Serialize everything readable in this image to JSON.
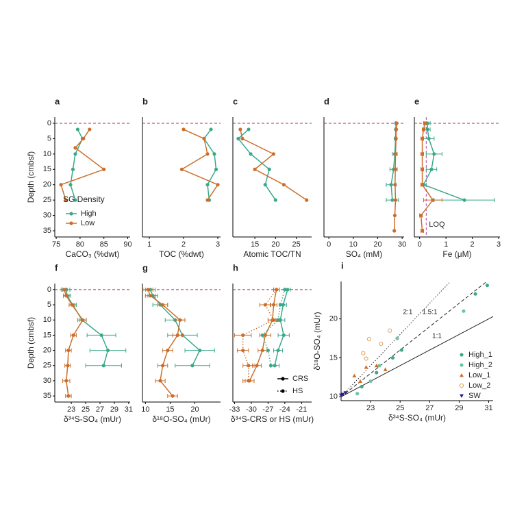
{
  "chart_data": [
    {
      "type": "line",
      "label": "a",
      "xlabel": "CaCO₃ (%dwt)",
      "ylabel": "Depth (cmbsf)",
      "xlim": [
        74.7,
        90.5
      ],
      "xticks": [
        75,
        80,
        85,
        90
      ],
      "ylim": [
        37,
        -2
      ],
      "yticks": [
        0,
        5,
        10,
        15,
        20,
        25,
        30,
        35
      ],
      "hline": {
        "value": 0,
        "color": "#a8326e"
      },
      "legend": {
        "title": "SG Density",
        "position": "bottom-left"
      },
      "series": [
        {
          "name": "High",
          "color": "#3aa98b",
          "x": [
            79.5,
            80.5,
            79,
            78.5,
            78,
            79
          ],
          "y": [
            2,
            5,
            10,
            15,
            20,
            25
          ]
        },
        {
          "name": "Low",
          "color": "#cc6e2a",
          "x": [
            82,
            80.7,
            79,
            85,
            76,
            77
          ],
          "y": [
            2,
            5,
            8,
            15,
            20,
            25
          ]
        }
      ]
    },
    {
      "type": "line",
      "label": "b",
      "xlabel": "TOC (%dwt)",
      "xlim": [
        0.8,
        3.08
      ],
      "xticks": [
        1,
        2,
        3
      ],
      "ylim": [
        37,
        -2
      ],
      "hline": {
        "value": 0,
        "color": "#a8326e"
      },
      "series": [
        {
          "color": "#3aa98b",
          "x": [
            2.8,
            2.6,
            2.9,
            2.95,
            2.7,
            2.75
          ],
          "y": [
            2,
            5,
            10,
            15,
            20,
            25
          ]
        },
        {
          "color": "#cc6e2a",
          "x": [
            2.0,
            2.6,
            2.7,
            1.95,
            3.0,
            2.7
          ],
          "y": [
            2,
            5,
            10,
            15,
            20,
            25
          ]
        }
      ]
    },
    {
      "type": "line",
      "label": "c",
      "xlabel": "Atomic TOC/TN",
      "xlim": [
        9.7,
        28.7
      ],
      "xticks": [
        15,
        20,
        25
      ],
      "ylim": [
        37,
        -2
      ],
      "hline": {
        "value": 0,
        "color": "#a8326e"
      },
      "series": [
        {
          "color": "#3aa98b",
          "x": [
            13.5,
            11,
            14,
            18.5,
            17.5,
            20
          ],
          "y": [
            2,
            5,
            10,
            15,
            20,
            25
          ]
        },
        {
          "color": "#cc6e2a",
          "x": [
            11.5,
            12,
            19.5,
            15,
            22,
            27.5
          ],
          "y": [
            2,
            5,
            10,
            15,
            20,
            25
          ]
        }
      ]
    },
    {
      "type": "line",
      "label": "d",
      "xlabel": "SO₄ (mM)",
      "xlim": [
        -2,
        30.8
      ],
      "xticks": [
        0,
        10,
        20,
        30
      ],
      "ylim": [
        37,
        -2
      ],
      "hline": {
        "value": 0,
        "color": "#a8326e"
      },
      "series": [
        {
          "color": "#3aa98b",
          "x": [
            27.5,
            27.4,
            27.3,
            27,
            26.5,
            25.5,
            26
          ],
          "y": [
            0,
            2,
            5,
            10,
            15,
            20,
            25
          ],
          "errors": [
            0.3,
            0.3,
            0.5,
            1,
            1.5,
            2,
            2.5
          ]
        },
        {
          "color": "#cc6e2a",
          "x": [
            27.8,
            27.6,
            27.5,
            27.3,
            27.2,
            27.1,
            27.3,
            27,
            26.8
          ],
          "y": [
            0,
            2,
            5,
            10,
            15,
            20,
            25,
            30,
            35
          ]
        }
      ]
    },
    {
      "type": "line",
      "label": "e",
      "xlabel": "Fe (μM)",
      "xlim": [
        -0.2,
        3.05
      ],
      "xticks": [
        0,
        1,
        2,
        3
      ],
      "ylim": [
        37,
        -2
      ],
      "hline": {
        "value": 0,
        "color": "#a8326e"
      },
      "vline": {
        "value": 0.25,
        "label": "LOQ",
        "color": "#b83fb0"
      },
      "series": [
        {
          "color": "#3aa98b",
          "x": [
            0.3,
            0.3,
            0.35,
            0.55,
            0.45,
            0.15,
            1.7
          ],
          "y": [
            0,
            2,
            5,
            10,
            15,
            20,
            25
          ],
          "errors": [
            0.1,
            0.1,
            0.2,
            0.3,
            0.2,
            0.1,
            1.15
          ]
        },
        {
          "color": "#cc6e2a",
          "x": [
            0.2,
            0.15,
            0.1,
            0.1,
            0.1,
            0.1,
            0.5,
            0.05,
            0.1
          ],
          "y": [
            0,
            2,
            5,
            10,
            15,
            20,
            25,
            30,
            35
          ],
          "errors": [
            0.05,
            0.05,
            0.05,
            0.05,
            0.05,
            0.05,
            0.35,
            0.05,
            0.05
          ]
        }
      ]
    },
    {
      "type": "line",
      "label": "f",
      "xlabel": "δ³⁴S-SO₄ (mUr)",
      "ylabel": "Depth (cmbsf)",
      "xlim": [
        20.7,
        31.2
      ],
      "xticks": [
        23,
        25,
        27,
        29,
        31
      ],
      "ylim": [
        37,
        -2
      ],
      "yticks": [
        0,
        5,
        10,
        15,
        20,
        25,
        30,
        35
      ],
      "hline": {
        "value": 0,
        "color": "#a8326e"
      },
      "series": [
        {
          "color": "#3aa98b",
          "x": [
            22.3,
            22.4,
            23.2,
            24.5,
            27.2,
            28.1,
            27.5
          ],
          "y": [
            0,
            2,
            5,
            10,
            15,
            20,
            25
          ],
          "errors": [
            0.5,
            0.5,
            0.5,
            0.6,
            2,
            2.5,
            2.5
          ]
        },
        {
          "color": "#cc6e2a",
          "x": [
            22,
            22.3,
            23.1,
            24.6,
            23.3,
            22.6,
            22.5,
            22.3,
            22.6
          ],
          "y": [
            0,
            2,
            5,
            10,
            15,
            20,
            25,
            30,
            35
          ],
          "errors": [
            0.4,
            0.4,
            0.4,
            0.5,
            0.4,
            0.4,
            0.4,
            0.5,
            0.4
          ]
        }
      ]
    },
    {
      "type": "line",
      "label": "g",
      "xlabel": "δ¹⁸O-SO₄ (mUr)",
      "xlim": [
        9.4,
        25.2
      ],
      "xticks": [
        10,
        15,
        20
      ],
      "ylim": [
        37,
        -2
      ],
      "hline": {
        "value": 0,
        "color": "#a8326e"
      },
      "series": [
        {
          "color": "#3aa98b",
          "x": [
            11,
            11.5,
            13,
            16,
            17.5,
            21,
            19.5
          ],
          "y": [
            0,
            2,
            5,
            10,
            15,
            20,
            25
          ],
          "errors": [
            1,
            1,
            1.5,
            2,
            3,
            3,
            3.5
          ]
        },
        {
          "color": "#cc6e2a",
          "x": [
            10.5,
            11,
            13.5,
            17,
            16.5,
            14.5,
            13.5,
            13,
            15.5
          ],
          "y": [
            0,
            2,
            5,
            10,
            15,
            20,
            25,
            30,
            35
          ],
          "errors": [
            1,
            1,
            1,
            1,
            1,
            1,
            1,
            1,
            1
          ]
        }
      ]
    },
    {
      "type": "line",
      "label": "h",
      "xlabel": "δ³⁴S-CRS or HS (mUr)",
      "xlim": [
        -33.3,
        -19.2
      ],
      "xticks": [
        -33,
        -30,
        -27,
        -24,
        -21
      ],
      "ylim": [
        37,
        -2
      ],
      "hline": {
        "value": 0,
        "color": "#a8326e"
      },
      "legend": {
        "position": "bottom-right",
        "items": [
          {
            "label": "CRS",
            "style": "solid"
          },
          {
            "label": "HS",
            "style": "dotted"
          }
        ]
      },
      "series": [
        {
          "color": "#3aa98b",
          "style": "solid",
          "x": [
            -23.5,
            -24.3,
            -24.8,
            -24.2,
            -25.2,
            -25.8
          ],
          "y": [
            0,
            5,
            10,
            15,
            20,
            25
          ],
          "errors": [
            0.5,
            0.6,
            0.8,
            1,
            0.8,
            0.8
          ]
        },
        {
          "color": "#cc6e2a",
          "style": "solid",
          "x": [
            -25.5,
            -26,
            -26.2,
            -27.5,
            -28,
            -29,
            -30.3
          ],
          "y": [
            0,
            5,
            10,
            15,
            20,
            25,
            30
          ],
          "errors": [
            0.5,
            0.6,
            0.8,
            1,
            0.8,
            0.8,
            0.8
          ]
        },
        {
          "color": "#3aa98b",
          "style": "dotted",
          "x": [
            -24,
            -24.8,
            -25.2,
            -28,
            -27,
            -26.5
          ],
          "y": [
            0,
            5,
            10,
            15,
            20,
            25
          ]
        },
        {
          "color": "#cc6e2a",
          "style": "dotted",
          "x": [
            -25.5,
            -27.5,
            -26,
            -31.5,
            -31.5,
            -30.5,
            -30.5
          ],
          "y": [
            0,
            5,
            10,
            15,
            20,
            25,
            30
          ],
          "errors": [
            0.5,
            1,
            1,
            1.5,
            1,
            1,
            1
          ]
        }
      ]
    },
    {
      "type": "scatter",
      "label": "i",
      "xlabel": "δ³⁴S-SO₄ (mUr)",
      "ylabel": "δ¹⁸O-SO₄ (mUr)",
      "xlim": [
        21,
        31.3
      ],
      "xticks": [
        23,
        25,
        27,
        29,
        31
      ],
      "ylim": [
        9.5,
        24.8
      ],
      "yticks": [
        10,
        15,
        20
      ],
      "legend": {
        "position": "bottom-right"
      },
      "lines": [
        {
          "label": "1:1",
          "slope": 1,
          "x0": 21,
          "y0": 10,
          "style": "solid"
        },
        {
          "label": "1.5:1",
          "slope": 1.5,
          "x0": 21,
          "y0": 10,
          "style": "dashed"
        },
        {
          "label": "2:1",
          "slope": 2,
          "x0": 21,
          "y0": 10,
          "style": "dotted"
        }
      ],
      "series": [
        {
          "name": "High_1",
          "color": "#3aa98b",
          "marker": "circle",
          "x": [
            22.4,
            23.4,
            24.5,
            25.1,
            30.1,
            30.9
          ],
          "y": [
            11.3,
            13.1,
            15.0,
            16.0,
            23.2,
            24.3
          ]
        },
        {
          "name": "High_2",
          "color": "#6cc4a5",
          "marker": "circle",
          "x": [
            22.1,
            23.0,
            23.6,
            24.8,
            29.3
          ],
          "y": [
            10.4,
            12.0,
            14.0,
            17.5,
            21.0
          ]
        },
        {
          "name": "Low_1",
          "color": "#cc6e2a",
          "marker": "triangle",
          "x": [
            21.9,
            22.3,
            22.7,
            23.4,
            24.0
          ],
          "y": [
            12.7,
            12.0,
            13.8,
            14.0,
            13.5
          ]
        },
        {
          "name": "Low_2",
          "color": "#e0a060",
          "marker": "open-circle",
          "x": [
            22.5,
            22.9,
            23.7,
            24.3,
            22.7
          ],
          "y": [
            15.6,
            17.4,
            16.8,
            18.5,
            14.9
          ]
        },
        {
          "name": "SW",
          "color": "#2a1f8f",
          "marker": "triangle-down",
          "x": [
            21.0,
            21.1,
            21.3
          ],
          "y": [
            10.2,
            10.3,
            10.5
          ]
        }
      ]
    }
  ]
}
